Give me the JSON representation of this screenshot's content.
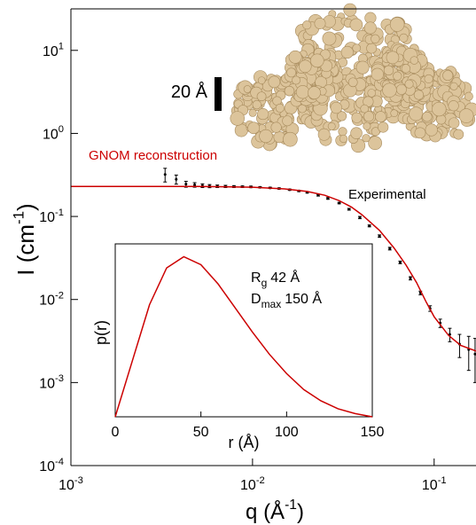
{
  "chart_data": [
    {
      "type": "line",
      "log_x": true,
      "log_y": true,
      "xlabel": {
        "text": "q (Å",
        "exponent": "-1",
        "suffix": ")"
      },
      "ylabel": {
        "text": "I (cm",
        "exponent": "-1",
        "suffix": ")"
      },
      "xlim": [
        0.001,
        0.17
      ],
      "ylim": [
        0.0001,
        31.6
      ],
      "xticks": [
        {
          "value": 0.001,
          "label": "10",
          "exponent": "-3"
        },
        {
          "value": 0.01,
          "label": "10",
          "exponent": "-2"
        },
        {
          "value": 0.1,
          "label": "10",
          "exponent": "-1"
        }
      ],
      "yticks": [
        {
          "value": 0.0001,
          "label": "10",
          "exponent": "-4"
        },
        {
          "value": 0.001,
          "label": "10",
          "exponent": "-3"
        },
        {
          "value": 0.01,
          "label": "10",
          "exponent": "-2"
        },
        {
          "value": 0.1,
          "label": "10",
          "exponent": "-1"
        },
        {
          "value": 1,
          "label": "10",
          "exponent": "0"
        },
        {
          "value": 10,
          "label": "10",
          "exponent": "1"
        }
      ],
      "scale_bar_label": "20 Å",
      "series": [
        {
          "name": "GNOM reconstruction",
          "color": "#cc0000",
          "x": [
            0.001,
            0.005,
            0.01,
            0.015,
            0.02,
            0.025,
            0.03,
            0.035,
            0.04,
            0.05,
            0.06,
            0.07,
            0.08,
            0.09,
            0.1,
            0.12,
            0.14,
            0.17
          ],
          "values": [
            0.23,
            0.23,
            0.225,
            0.215,
            0.2,
            0.18,
            0.155,
            0.13,
            0.105,
            0.068,
            0.042,
            0.026,
            0.016,
            0.0095,
            0.0062,
            0.0037,
            0.0028,
            0.0024
          ]
        },
        {
          "name": "Experimental",
          "color": "#000000",
          "x": [
            0.0033,
            0.0038,
            0.0043,
            0.0048,
            0.0053,
            0.0058,
            0.0064,
            0.0071,
            0.0079,
            0.0088,
            0.0098,
            0.011,
            0.0125,
            0.014,
            0.016,
            0.018,
            0.02,
            0.023,
            0.026,
            0.03,
            0.034,
            0.039,
            0.044,
            0.05,
            0.057,
            0.065,
            0.074,
            0.084,
            0.095,
            0.108,
            0.122,
            0.138,
            0.155,
            0.168
          ],
          "values": [
            0.32,
            0.28,
            0.245,
            0.24,
            0.235,
            0.232,
            0.231,
            0.23,
            0.229,
            0.228,
            0.227,
            0.224,
            0.221,
            0.217,
            0.21,
            0.203,
            0.195,
            0.18,
            0.165,
            0.145,
            0.122,
            0.097,
            0.077,
            0.058,
            0.041,
            0.028,
            0.018,
            0.012,
            0.0078,
            0.0052,
            0.0038,
            0.0029,
            0.0025,
            0.0022
          ],
          "errors": [
            0.06,
            0.035,
            0.02,
            0.015,
            0.012,
            0.01,
            0.008,
            0.007,
            0.006,
            0.005,
            0.005,
            0.004,
            0.004,
            0.004,
            0.004,
            0.004,
            0.004,
            0.004,
            0.004,
            0.003,
            0.003,
            0.003,
            0.002,
            0.002,
            0.0015,
            0.001,
            0.0008,
            0.0006,
            0.0006,
            0.0006,
            0.0007,
            0.0009,
            0.0011,
            0.0012
          ]
        }
      ]
    },
    {
      "type": "line",
      "xlabel": "r (Å)",
      "ylabel": "p(r)",
      "color": "#cc0000",
      "xlim": [
        0,
        150
      ],
      "ylim": [
        0,
        1.08
      ],
      "xticks": [
        0,
        50,
        100,
        150
      ],
      "x": [
        0,
        10,
        20,
        30,
        40,
        50,
        60,
        70,
        80,
        90,
        100,
        110,
        120,
        130,
        140,
        150
      ],
      "values": [
        0,
        0.35,
        0.7,
        0.93,
        1.0,
        0.95,
        0.83,
        0.68,
        0.53,
        0.39,
        0.27,
        0.17,
        0.1,
        0.05,
        0.02,
        0
      ],
      "annotations": [
        {
          "symbol": "R",
          "subscript": "g",
          "text": "42 Å"
        },
        {
          "symbol": "D",
          "subscript": "max",
          "text": "150 Å"
        }
      ]
    }
  ]
}
